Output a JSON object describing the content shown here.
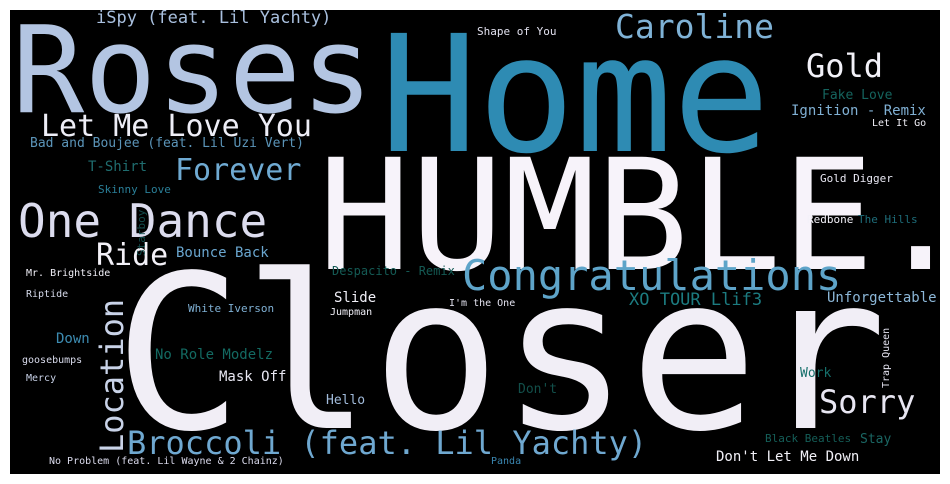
{
  "colors": {
    "background": "#000000",
    "white": "#f7f3fa",
    "pale_blue": "#b3c5e2",
    "light_blue": "#88b1d6",
    "teal_blue": "#2e8bb3",
    "deep_teal": "#0e6e75",
    "dark_teal": "#1a5c55",
    "lavender": "#d6d5eb"
  },
  "words": [
    {
      "text": "Closer",
      "color": "#f1eef6"
    },
    {
      "text": "HUMBLE.",
      "color": "#f7f3fa"
    },
    {
      "text": "Home",
      "color": "#2e8bb3"
    },
    {
      "text": "Roses",
      "color": "#b3c5e2"
    },
    {
      "text": "Congratulations",
      "color": "#5ea4c9"
    },
    {
      "text": "One Dance",
      "color": "#dcdcee"
    },
    {
      "text": "Broccoli (feat. Lil Yachty)",
      "color": "#6fa8d0"
    },
    {
      "text": "Caroline",
      "color": "#7fb2d6"
    },
    {
      "text": "Let Me Love You",
      "color": "#eeeef7"
    },
    {
      "text": "Location",
      "color": "#c9d3e8"
    },
    {
      "text": "Gold",
      "color": "#f2f1f8"
    },
    {
      "text": "Forever",
      "color": "#6faad2"
    },
    {
      "text": "Sorry",
      "color": "#e8e6f2"
    },
    {
      "text": "Ride",
      "color": "#f3f1f8"
    },
    {
      "text": "XO TOUR Llif3",
      "color": "#1c7b80"
    },
    {
      "text": "iSpy (feat. Lil Yachty)",
      "color": "#a9c0df"
    },
    {
      "text": "Bounce Back",
      "color": "#6aa6cf"
    },
    {
      "text": "Unforgettable",
      "color": "#8cb7d8"
    },
    {
      "text": "Ignition - Remix",
      "color": "#80b0d4"
    },
    {
      "text": "Fake Love",
      "color": "#15645e"
    },
    {
      "text": "Mask Off",
      "color": "#e9e8f3"
    },
    {
      "text": "No Role Modelz",
      "color": "#136a62"
    },
    {
      "text": "Don't Let Me Down",
      "color": "#f2f1f8"
    },
    {
      "text": "Bad and Boujee (feat. Lil Uzi Vert)",
      "color": "#5b94b8"
    },
    {
      "text": "T-Shirt",
      "color": "#1f6d6f"
    },
    {
      "text": "Despacito - Remix",
      "color": "#145a54"
    },
    {
      "text": "Slide",
      "color": "#f1f0f8"
    },
    {
      "text": "Work",
      "color": "#16706c"
    },
    {
      "text": "Down",
      "color": "#3d8cb2"
    },
    {
      "text": "Don't",
      "color": "#124f4a"
    },
    {
      "text": "Hello",
      "color": "#a2bcdc"
    },
    {
      "text": "Black Beatles",
      "color": "#155f59"
    },
    {
      "text": "Stay",
      "color": "#1a6663"
    },
    {
      "text": "White Iverson",
      "color": "#7fb0d4"
    },
    {
      "text": "Skinny Love",
      "color": "#2a7f98"
    },
    {
      "text": "Starboy",
      "color": "#134c4c"
    },
    {
      "text": "Shape of You",
      "color": "#e2e1ef"
    },
    {
      "text": "Gold Digger",
      "color": "#e9e8f3"
    },
    {
      "text": "Let It Go",
      "color": "#f0eff7"
    },
    {
      "text": "Redbone",
      "color": "#f4f2f9"
    },
    {
      "text": "The Hills",
      "color": "#1e6d7a"
    },
    {
      "text": "Mr. Brightside",
      "color": "#f0eff7"
    },
    {
      "text": "Riptide",
      "color": "#d7dbec"
    },
    {
      "text": "Jumpman",
      "color": "#f1f0f8"
    },
    {
      "text": "I'm the One",
      "color": "#e5e4f1"
    },
    {
      "text": "goosebumps",
      "color": "#d9dbec"
    },
    {
      "text": "Mercy",
      "color": "#c8d1e7"
    },
    {
      "text": "Trap Queen",
      "color": "#e4e3f0"
    },
    {
      "text": "No Problem (feat. Lil Wayne & 2 Chainz)",
      "color": "#dcdcee"
    },
    {
      "text": "Panda",
      "color": "#3a86b0"
    }
  ]
}
